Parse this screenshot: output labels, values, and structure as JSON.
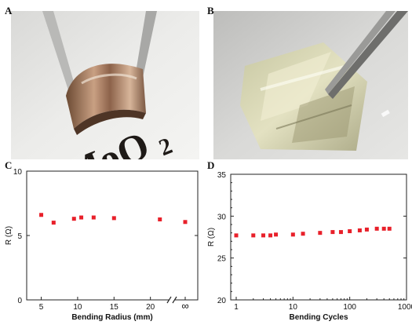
{
  "panels": {
    "a": {
      "letter": "A",
      "photo_text": "MoO",
      "photo_subscript": "2"
    },
    "b": {
      "letter": "B"
    },
    "c": {
      "letter": "C"
    },
    "d": {
      "letter": "D"
    }
  },
  "colors": {
    "marker": "#e8202a",
    "axis": "#222222"
  },
  "chart_data": [
    {
      "type": "scatter",
      "xlabel": "Bending Radius (mm)",
      "ylabel": "R (Ω)",
      "ylim": [
        0,
        10
      ],
      "yticks": [
        "0",
        "5",
        "10"
      ],
      "xticks": [
        "5",
        "10",
        "15",
        "20",
        "∞"
      ],
      "axis_break": true,
      "x": [
        5,
        6.7,
        9.5,
        10.5,
        12.2,
        15,
        21.3,
        "∞"
      ],
      "y": [
        6.6,
        6.0,
        6.3,
        6.4,
        6.4,
        6.35,
        6.25,
        6.05
      ],
      "grid": false
    },
    {
      "type": "scatter",
      "xlabel": "Bending Cycles",
      "ylabel": "R (Ω)",
      "xscale": "log",
      "xlim": [
        0.8,
        1000
      ],
      "ylim": [
        20,
        35
      ],
      "yticks": [
        "20",
        "25",
        "30",
        "35"
      ],
      "xticks": [
        "1",
        "10",
        "100",
        "1000"
      ],
      "x": [
        1,
        2,
        3,
        4,
        5,
        10,
        15,
        30,
        50,
        70,
        100,
        150,
        200,
        300,
        400,
        500
      ],
      "y": [
        27.7,
        27.7,
        27.7,
        27.7,
        27.8,
        27.8,
        27.9,
        28.0,
        28.1,
        28.1,
        28.2,
        28.3,
        28.4,
        28.5,
        28.5,
        28.5
      ],
      "grid": false
    }
  ]
}
